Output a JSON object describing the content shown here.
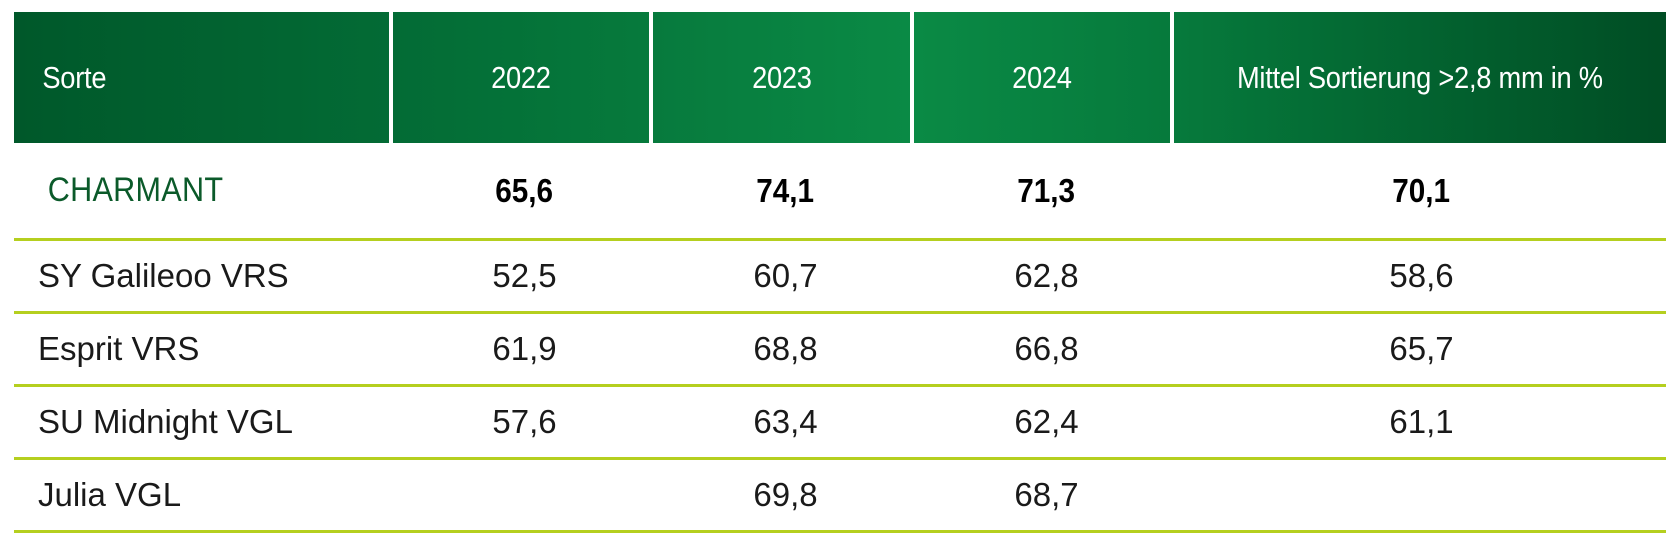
{
  "chart_data": {
    "type": "table",
    "title": "",
    "columns": [
      "Sorte",
      "2022",
      "2023",
      "2024",
      "Mittel Sortierung >2,8 mm in %"
    ],
    "rows": [
      {
        "name": "CHARMANT",
        "values": [
          "65,6",
          "74,1",
          "71,3",
          "70,1"
        ],
        "highlight": true
      },
      {
        "name": "SY Galileoo VRS",
        "values": [
          "52,5",
          "60,7",
          "62,8",
          "58,6"
        ],
        "highlight": false
      },
      {
        "name": "Esprit VRS",
        "values": [
          "61,9",
          "68,8",
          "66,8",
          "65,7"
        ],
        "highlight": false
      },
      {
        "name": "SU Midnight VGL",
        "values": [
          "57,6",
          "63,4",
          "62,4",
          "61,1"
        ],
        "highlight": false
      },
      {
        "name": "Julia VGL",
        "values": [
          "",
          "69,8",
          "68,7",
          ""
        ],
        "highlight": false
      }
    ]
  },
  "colors": {
    "header_dark": "#00582a",
    "header_mid": "#0a8a45",
    "highlight_text": "#0b5a2a",
    "row_divider": "#b5cf1f"
  }
}
